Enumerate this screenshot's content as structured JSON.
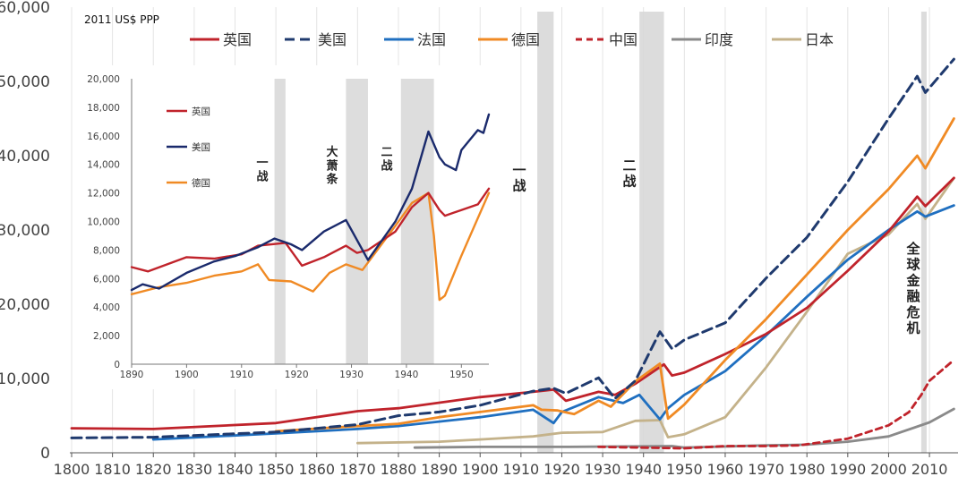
{
  "chart_data": [
    {
      "type": "line",
      "unit_label": "2011 US$ PPP",
      "xlim": [
        1800,
        2017
      ],
      "ylim": [
        0,
        60000
      ],
      "x_ticks": [
        1800,
        1810,
        1820,
        1830,
        1840,
        1850,
        1860,
        1870,
        1880,
        1890,
        1900,
        1910,
        1920,
        1930,
        1940,
        1950,
        1960,
        1970,
        1980,
        1990,
        2000,
        2010
      ],
      "y_ticks": [
        {
          "value": 0,
          "label": "0"
        },
        {
          "value": 10000,
          "label": "10,000"
        },
        {
          "value": 20000,
          "label": "20,000"
        },
        {
          "value": 30000,
          "label": "30,000"
        },
        {
          "value": 40000,
          "label": "40,000"
        },
        {
          "value": 50000,
          "label": "50,000"
        },
        {
          "value": 60000,
          "label": "60,000"
        }
      ],
      "shaded_periods": [
        {
          "start": 1914,
          "end": 1918,
          "label": "一战"
        },
        {
          "start": 1939,
          "end": 1945,
          "label": "二战"
        },
        {
          "start": 2008,
          "end": 2009,
          "label": "全球金融危机"
        }
      ],
      "legend_position": "top",
      "series": [
        {
          "name": "英国",
          "color": "#c0232b",
          "dash": "solid",
          "points": [
            [
              1800,
              3300
            ],
            [
              1820,
              3200
            ],
            [
              1850,
              4000
            ],
            [
              1870,
              5600
            ],
            [
              1880,
              6000
            ],
            [
              1900,
              7500
            ],
            [
              1913,
              8200
            ],
            [
              1918,
              8500
            ],
            [
              1921,
              7000
            ],
            [
              1929,
              8200
            ],
            [
              1933,
              7800
            ],
            [
              1938,
              9300
            ],
            [
              1945,
              11900
            ],
            [
              1947,
              10400
            ],
            [
              1950,
              10800
            ],
            [
              1960,
              13300
            ],
            [
              1970,
              16000
            ],
            [
              1980,
              19500
            ],
            [
              1990,
              24500
            ],
            [
              2000,
              29800
            ],
            [
              2007,
              34500
            ],
            [
              2009,
              33200
            ],
            [
              2016,
              37000
            ]
          ]
        },
        {
          "name": "美国",
          "color": "#1f3a6e",
          "dash": "dashed",
          "points": [
            [
              1800,
              2000
            ],
            [
              1820,
              2100
            ],
            [
              1850,
              2800
            ],
            [
              1870,
              3800
            ],
            [
              1880,
              5000
            ],
            [
              1890,
              5500
            ],
            [
              1900,
              6400
            ],
            [
              1913,
              8300
            ],
            [
              1918,
              8700
            ],
            [
              1921,
              8000
            ],
            [
              1929,
              10100
            ],
            [
              1933,
              7300
            ],
            [
              1938,
              9700
            ],
            [
              1944,
              16300
            ],
            [
              1947,
              14000
            ],
            [
              1950,
              15200
            ],
            [
              1960,
              17500
            ],
            [
              1970,
              23500
            ],
            [
              1980,
              29000
            ],
            [
              1990,
              36500
            ],
            [
              2000,
              45000
            ],
            [
              2007,
              50700
            ],
            [
              2009,
              48500
            ],
            [
              2016,
              53000
            ]
          ]
        },
        {
          "name": "法国",
          "color": "#1f6fc0",
          "dash": "solid",
          "points": [
            [
              1820,
              1800
            ],
            [
              1850,
              2600
            ],
            [
              1870,
              3200
            ],
            [
              1880,
              3600
            ],
            [
              1900,
              4800
            ],
            [
              1913,
              5800
            ],
            [
              1918,
              4000
            ],
            [
              1920,
              5500
            ],
            [
              1929,
              7500
            ],
            [
              1935,
              6700
            ],
            [
              1939,
              7800
            ],
            [
              1944,
              4500
            ],
            [
              1946,
              6000
            ],
            [
              1950,
              7800
            ],
            [
              1960,
              11000
            ],
            [
              1970,
              15800
            ],
            [
              1980,
              21000
            ],
            [
              1990,
              26000
            ],
            [
              2000,
              30000
            ],
            [
              2007,
              32500
            ],
            [
              2009,
              31800
            ],
            [
              2016,
              33300
            ]
          ]
        },
        {
          "name": "德国",
          "color": "#f08a24",
          "dash": "solid",
          "points": [
            [
              1850,
              2900
            ],
            [
              1870,
              3600
            ],
            [
              1880,
              3900
            ],
            [
              1890,
              4800
            ],
            [
              1900,
              5500
            ],
            [
              1913,
              6400
            ],
            [
              1915,
              5800
            ],
            [
              1919,
              5700
            ],
            [
              1923,
              5200
            ],
            [
              1929,
              7000
            ],
            [
              1932,
              6200
            ],
            [
              1938,
              9600
            ],
            [
              1944,
              12000
            ],
            [
              1946,
              4600
            ],
            [
              1950,
              6500
            ],
            [
              1960,
              12500
            ],
            [
              1970,
              18000
            ],
            [
              1980,
              24000
            ],
            [
              1990,
              30000
            ],
            [
              2000,
              35500
            ],
            [
              2007,
              40000
            ],
            [
              2009,
              38300
            ],
            [
              2016,
              45000
            ]
          ]
        },
        {
          "name": "中国",
          "color": "#c0232b",
          "dash": "short",
          "points": [
            [
              1929,
              800
            ],
            [
              1950,
              600
            ],
            [
              1960,
              900
            ],
            [
              1970,
              900
            ],
            [
              1978,
              1000
            ],
            [
              1990,
              1900
            ],
            [
              2000,
              3700
            ],
            [
              2005,
              5500
            ],
            [
              2008,
              7800
            ],
            [
              2010,
              9700
            ],
            [
              2016,
              12500
            ]
          ]
        },
        {
          "name": "印度",
          "color": "#8a8a8a",
          "dash": "solid",
          "points": [
            [
              1884,
              700
            ],
            [
              1900,
              800
            ],
            [
              1920,
              800
            ],
            [
              1947,
              900
            ],
            [
              1950,
              700
            ],
            [
              1970,
              1000
            ],
            [
              1980,
              1100
            ],
            [
              1990,
              1500
            ],
            [
              2000,
              2200
            ],
            [
              2010,
              4100
            ],
            [
              2016,
              5900
            ]
          ]
        },
        {
          "name": "日本",
          "color": "#c4b28a",
          "dash": "solid",
          "points": [
            [
              1870,
              1300
            ],
            [
              1890,
              1500
            ],
            [
              1900,
              1800
            ],
            [
              1913,
              2200
            ],
            [
              1920,
              2700
            ],
            [
              1930,
              2800
            ],
            [
              1938,
              4300
            ],
            [
              1944,
              4400
            ],
            [
              1946,
              2100
            ],
            [
              1950,
              2500
            ],
            [
              1960,
              4800
            ],
            [
              1970,
              11500
            ],
            [
              1980,
              19000
            ],
            [
              1990,
              26800
            ],
            [
              2000,
              29400
            ],
            [
              2007,
              33500
            ],
            [
              2009,
              31500
            ],
            [
              2016,
              37000
            ]
          ]
        }
      ]
    },
    {
      "type": "line",
      "title": "inset",
      "xlim": [
        1890,
        1955
      ],
      "ylim": [
        0,
        20000
      ],
      "x_ticks": [
        1890,
        1900,
        1910,
        1920,
        1930,
        1940,
        1950
      ],
      "y_ticks": [
        {
          "value": 0,
          "label": "0"
        },
        {
          "value": 2000,
          "label": "2,000"
        },
        {
          "value": 4000,
          "label": "4,000"
        },
        {
          "value": 6000,
          "label": "6,000"
        },
        {
          "value": 8000,
          "label": "8,000"
        },
        {
          "value": 10000,
          "label": "10,000"
        },
        {
          "value": 12000,
          "label": "12,000"
        },
        {
          "value": 14000,
          "label": "14,000"
        },
        {
          "value": 16000,
          "label": "16,000"
        },
        {
          "value": 18000,
          "label": "18,000"
        },
        {
          "value": 20000,
          "label": "20,000"
        }
      ],
      "shaded_periods": [
        {
          "start": 1916,
          "end": 1918,
          "label": "一战"
        },
        {
          "start": 1929,
          "end": 1933,
          "label": "大萧条"
        },
        {
          "start": 1939,
          "end": 1945,
          "label": "二战"
        }
      ],
      "legend_position": "left",
      "series": [
        {
          "name": "英国",
          "color": "#c0232b",
          "points": [
            [
              1890,
              6800
            ],
            [
              1893,
              6500
            ],
            [
              1900,
              7500
            ],
            [
              1905,
              7400
            ],
            [
              1910,
              7700
            ],
            [
              1913,
              8300
            ],
            [
              1918,
              8500
            ],
            [
              1921,
              6900
            ],
            [
              1925,
              7500
            ],
            [
              1929,
              8300
            ],
            [
              1931,
              7800
            ],
            [
              1933,
              8000
            ],
            [
              1938,
              9300
            ],
            [
              1941,
              11000
            ],
            [
              1944,
              12000
            ],
            [
              1946,
              10800
            ],
            [
              1947,
              10400
            ],
            [
              1950,
              10800
            ],
            [
              1953,
              11200
            ],
            [
              1955,
              12300
            ]
          ]
        },
        {
          "name": "美国",
          "color": "#1a2a6c",
          "points": [
            [
              1890,
              5200
            ],
            [
              1892,
              5600
            ],
            [
              1895,
              5300
            ],
            [
              1900,
              6400
            ],
            [
              1905,
              7200
            ],
            [
              1909,
              7600
            ],
            [
              1913,
              8200
            ],
            [
              1916,
              8800
            ],
            [
              1919,
              8400
            ],
            [
              1921,
              8000
            ],
            [
              1925,
              9300
            ],
            [
              1929,
              10100
            ],
            [
              1933,
              7300
            ],
            [
              1938,
              10000
            ],
            [
              1941,
              12300
            ],
            [
              1944,
              16300
            ],
            [
              1946,
              14500
            ],
            [
              1947,
              14000
            ],
            [
              1949,
              13600
            ],
            [
              1950,
              15000
            ],
            [
              1953,
              16400
            ],
            [
              1954,
              16200
            ],
            [
              1955,
              17500
            ]
          ]
        },
        {
          "name": "德国",
          "color": "#f08a24",
          "points": [
            [
              1890,
              4900
            ],
            [
              1895,
              5400
            ],
            [
              1900,
              5700
            ],
            [
              1905,
              6200
            ],
            [
              1910,
              6500
            ],
            [
              1913,
              7000
            ],
            [
              1915,
              5900
            ],
            [
              1919,
              5800
            ],
            [
              1923,
              5100
            ],
            [
              1926,
              6400
            ],
            [
              1929,
              7000
            ],
            [
              1932,
              6600
            ],
            [
              1938,
              9700
            ],
            [
              1941,
              11300
            ],
            [
              1944,
              12000
            ],
            [
              1945,
              9000
            ],
            [
              1946,
              4500
            ],
            [
              1947,
              4800
            ],
            [
              1950,
              7600
            ],
            [
              1955,
              12000
            ]
          ]
        }
      ]
    }
  ]
}
